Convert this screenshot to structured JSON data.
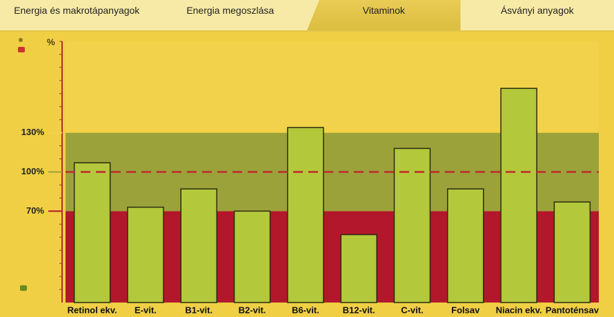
{
  "tabs": [
    {
      "label": "Energia és makrotápanyagok",
      "active": false
    },
    {
      "label": "Energia megoszlása",
      "active": false
    },
    {
      "label": "Vitaminok",
      "active": true
    },
    {
      "label": "Ásványi anyagok",
      "active": false
    }
  ],
  "chart_data": {
    "type": "bar",
    "y_axis_label": "%",
    "categories": [
      "Retinol ekv.",
      "E-vit.",
      "B1-vit.",
      "B2-vit.",
      "B6-vit.",
      "B12-vit.",
      "C-vit.",
      "Folsav",
      "Niacin ekv.",
      "Pantoténsav"
    ],
    "values": [
      107,
      73,
      87,
      70,
      134,
      52,
      118,
      87,
      164,
      77
    ],
    "color": "#b3c83a",
    "ylim": [
      0,
      200
    ],
    "yticks": [
      {
        "value": 70,
        "label": "70%"
      },
      {
        "value": 100,
        "label": "100%"
      },
      {
        "value": 130,
        "label": "130%"
      }
    ],
    "band_colors": [
      "#b3172b",
      "#9ba23a",
      "#f2d24a"
    ],
    "reference_line": 100,
    "reference_color": "#c0272d"
  }
}
